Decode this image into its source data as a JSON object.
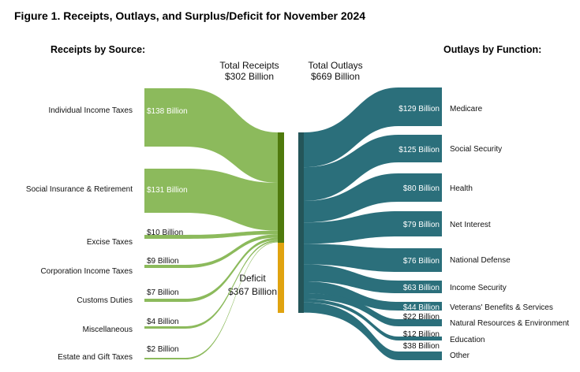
{
  "colors": {
    "receipts_band": "#8cba5c",
    "receipts_bar": "#4f7a0d",
    "deficit_bar": "#e0a30f",
    "outlays_band": "#2b6f7b",
    "outlays_bar": "#245559"
  },
  "chart_data": {
    "type": "sankey",
    "title": "Figure 1. Receipts, Outlays, and Surplus/Deficit for November 2024",
    "units": "Billion USD",
    "receipts_header": "Receipts by Source:",
    "outlays_header": "Outlays by Function:",
    "total_receipts": {
      "label": "Total Receipts",
      "value_label": "$302 Billion",
      "value": 302
    },
    "total_outlays": {
      "label": "Total Outlays",
      "value_label": "$669 Billion",
      "value": 669
    },
    "deficit": {
      "label": "Deficit",
      "value_label": "$367 Billion",
      "value": 367
    },
    "receipts": [
      {
        "name": "Individual Income Taxes",
        "value": 138,
        "value_label": "$138 Billion"
      },
      {
        "name": "Social Insurance & Retirement",
        "value": 131,
        "value_label": "$131 Billion"
      },
      {
        "name": "Excise Taxes",
        "value": 10,
        "value_label": "$10 Billion"
      },
      {
        "name": "Corporation Income Taxes",
        "value": 9,
        "value_label": "$9 Billion"
      },
      {
        "name": "Customs Duties",
        "value": 7,
        "value_label": "$7 Billion"
      },
      {
        "name": "Miscellaneous",
        "value": 4,
        "value_label": "$4 Billion"
      },
      {
        "name": "Estate and Gift Taxes",
        "value": 2,
        "value_label": "$2 Billion"
      }
    ],
    "outlays": [
      {
        "name": "Medicare",
        "value": 129,
        "value_label": "$129 Billion"
      },
      {
        "name": "Social Security",
        "value": 125,
        "value_label": "$125 Billion"
      },
      {
        "name": "Health",
        "value": 80,
        "value_label": "$80 Billion"
      },
      {
        "name": "Net Interest",
        "value": 79,
        "value_label": "$79 Billion"
      },
      {
        "name": "National Defense",
        "value": 76,
        "value_label": "$76 Billion"
      },
      {
        "name": "Income Security",
        "value": 63,
        "value_label": "$63 Billion"
      },
      {
        "name": "Veterans' Benefits & Services",
        "value": 44,
        "value_label": "$44 Billion"
      },
      {
        "name": "Natural Resources & Environment",
        "value": 22,
        "value_label": "$22 Billion"
      },
      {
        "name": "Education",
        "value": 12,
        "value_label": "$12 Billion"
      },
      {
        "name": "Other",
        "value": 38,
        "value_label": "$38 Billion"
      }
    ]
  }
}
